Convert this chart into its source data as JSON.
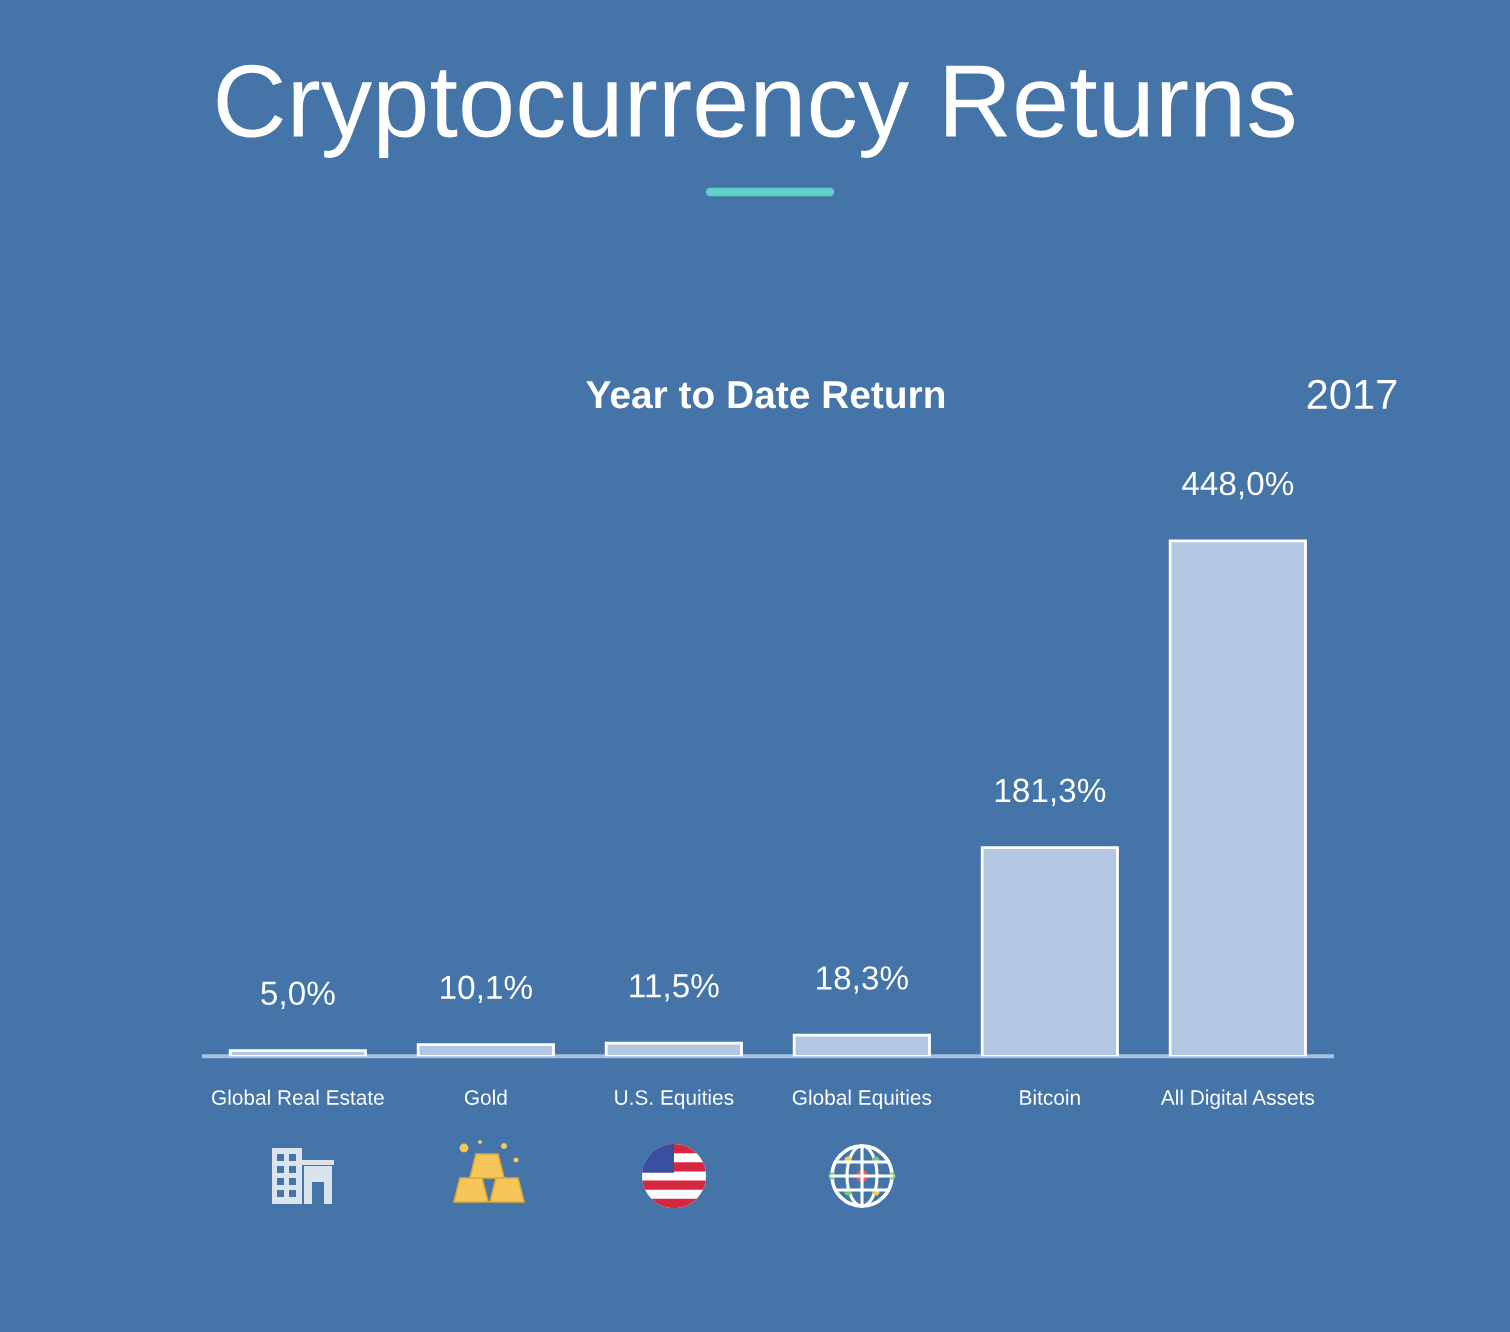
{
  "chart_data": {
    "type": "bar",
    "title": "Cryptocurrency Returns",
    "subtitle": "Year to Date Return",
    "annotations": [
      "2017"
    ],
    "categories": [
      "Global Real Estate",
      "Gold",
      "U.S. Equities",
      "Global Equities",
      "Bitcoin",
      "All Digital Assets"
    ],
    "values": [
      5.0,
      10.1,
      11.5,
      18.3,
      181.3,
      448.0
    ],
    "color": "#b3c7e3",
    "value_labels": [
      "5,0%",
      "10,1%",
      "11,5%",
      "18,3%",
      "181,3%",
      "448,0%"
    ]
  }
}
